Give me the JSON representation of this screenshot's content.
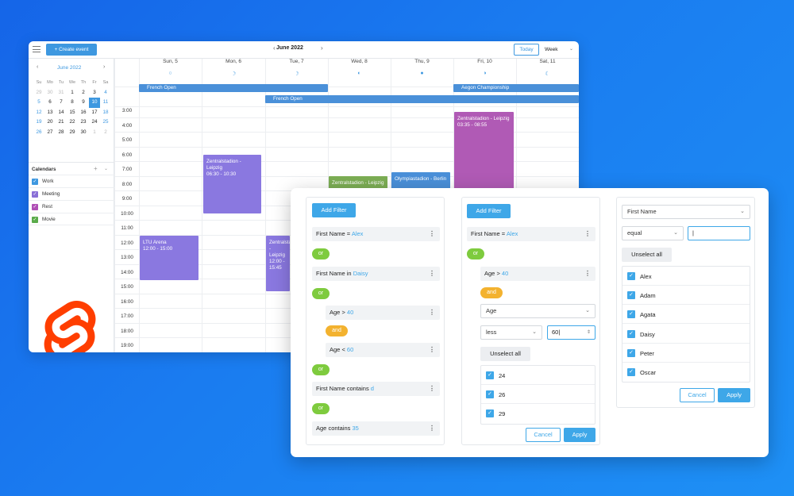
{
  "calendar": {
    "create_label": "+  Create event",
    "month_title": "June 2022",
    "today_label": "Today",
    "view_label": "Week",
    "mini": {
      "title": "June 2022",
      "weekdays": [
        "Su",
        "Mo",
        "Tu",
        "We",
        "Th",
        "Fr",
        "Sa"
      ],
      "weeks": [
        [
          "29",
          "30",
          "31",
          "1",
          "2",
          "3",
          "4"
        ],
        [
          "5",
          "6",
          "7",
          "8",
          "9",
          "10",
          "11"
        ],
        [
          "12",
          "13",
          "14",
          "15",
          "16",
          "17",
          "18"
        ],
        [
          "19",
          "20",
          "21",
          "22",
          "23",
          "24",
          "25"
        ],
        [
          "26",
          "27",
          "28",
          "29",
          "30",
          "1",
          "2"
        ]
      ]
    },
    "calendars_title": "Calendars",
    "calendars": [
      {
        "label": "Work",
        "color": "#3e98e0"
      },
      {
        "label": "Meeting",
        "color": "#8a6fd6"
      },
      {
        "label": "Rest",
        "color": "#b04fb5"
      },
      {
        "label": "Movie",
        "color": "#5aab4a"
      }
    ],
    "days": [
      "Sun, 5",
      "Mon, 6",
      "Tue, 7",
      "Wed, 8",
      "Thu, 9",
      "Fri, 10",
      "Sat, 11"
    ],
    "times": [
      "3:00",
      "4:00",
      "5:00",
      "6:00",
      "7:00",
      "8:00",
      "9:00",
      "10:00",
      "11:00",
      "12:00",
      "13:00",
      "14:00",
      "15:00",
      "16:00",
      "17:00",
      "18:00",
      "19:00"
    ],
    "allday": [
      {
        "label": "French Open"
      },
      {
        "label": "French Open"
      },
      {
        "label": "Aegon Championship"
      }
    ],
    "events": [
      {
        "title": "Zentralstadion - Leipzig",
        "time": "06:30 - 10:30",
        "color": "#8a78e0"
      },
      {
        "title": "LTU Arena",
        "time": "12:00 - 15:00",
        "color": "#8a78e0"
      },
      {
        "title": "Zentralstadion - Leipzig",
        "time": "12:00 - 15:45",
        "color": "#8a78e0"
      },
      {
        "title": "Zentralstadion - Leipzig",
        "time": "",
        "color": "#7cae54"
      },
      {
        "title": "Olympiastadion - Berlin",
        "time": "",
        "color": "#4a90d9"
      },
      {
        "title": "Zentralstadion - Leipzig",
        "time": "03:35 - 08:55",
        "color": "#b05ab5"
      }
    ]
  },
  "filter": {
    "panel1": {
      "add_label": "Add Filter",
      "rule1": {
        "field": "First Name",
        "op": " = ",
        "value": "Alex"
      },
      "or1": "or",
      "rule2": {
        "field": "First Name",
        "op": " in ",
        "value": "Daisy"
      },
      "or2": "or",
      "rule3": {
        "field": "Age",
        "op": " > ",
        "value": "40"
      },
      "and1": "and",
      "rule4": {
        "field": "Age",
        "op": " < ",
        "value": "60"
      },
      "or3": "or",
      "rule5": {
        "field": "First Name",
        "op": " contains ",
        "value": "d"
      },
      "or4": "or",
      "rule6": {
        "field": "Age",
        "op": " contains ",
        "value": "35"
      }
    },
    "panel2": {
      "add_label": "Add Filter",
      "rule1": {
        "field": "First Name",
        "op": " = ",
        "value": "Alex"
      },
      "or1": "or",
      "rule2": {
        "field": "Age",
        "op": " > ",
        "value": "40"
      },
      "and1": "and",
      "field_select": "Age",
      "op_select": "less",
      "input_value": "60",
      "unselect_label": "Unselect all",
      "options": [
        "24",
        "26",
        "29"
      ],
      "cancel_label": "Cancel",
      "apply_label": "Apply"
    },
    "panel3": {
      "field_select": "First Name",
      "op_select": "equal",
      "input_value": "",
      "unselect_label": "Unselect all",
      "options": [
        "Alex",
        "Adam",
        "Agata",
        "Daisy",
        "Peter",
        "Oscar"
      ],
      "cancel_label": "Cancel",
      "apply_label": "Apply"
    }
  }
}
